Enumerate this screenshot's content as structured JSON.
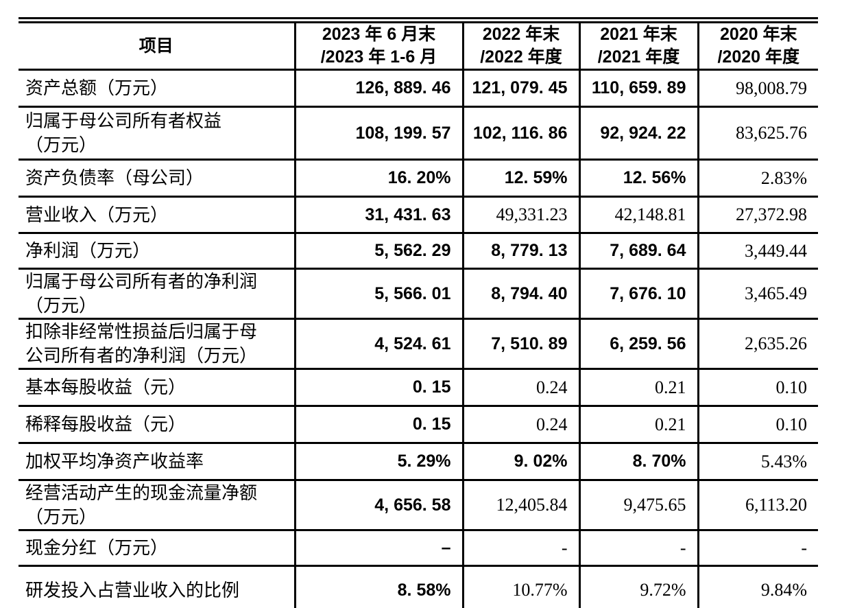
{
  "colors": {
    "text": "#000000",
    "background": "#ffffff",
    "border": "#000000"
  },
  "table": {
    "header": [
      "项目",
      "2023 年 6 月末\n/2023 年 1-6 月",
      "2022 年末\n/2022 年度",
      "2021 年末\n/2021 年度",
      "2020 年末\n/2020 年度"
    ],
    "rows": [
      {
        "label": "资产总额（万元）",
        "values": [
          "126, 889. 46",
          "121, 079. 45",
          "110, 659. 89",
          "98,008.79"
        ],
        "bold": [
          true,
          true,
          true,
          false
        ]
      },
      {
        "label": "归属于母公司所有者权益\n（万元）",
        "values": [
          "108, 199. 57",
          "102, 116. 86",
          "92, 924. 22",
          "83,625.76"
        ],
        "bold": [
          true,
          true,
          true,
          false
        ]
      },
      {
        "label": "资产负债率（母公司）",
        "values": [
          "16. 20%",
          "12. 59%",
          "12. 56%",
          "2.83%"
        ],
        "bold": [
          true,
          true,
          true,
          false
        ]
      },
      {
        "label": "营业收入（万元）",
        "values": [
          "31, 431. 63",
          "49,331.23",
          "42,148.81",
          "27,372.98"
        ],
        "bold": [
          true,
          false,
          false,
          false
        ]
      },
      {
        "label": "净利润（万元）",
        "values": [
          "5, 562. 29",
          "8, 779. 13",
          "7, 689. 64",
          "3,449.44"
        ],
        "bold": [
          true,
          true,
          true,
          false
        ]
      },
      {
        "label": "归属于母公司所有者的净利润\n（万元）",
        "values": [
          "5, 566. 01",
          "8, 794. 40",
          "7, 676. 10",
          "3,465.49"
        ],
        "bold": [
          true,
          true,
          true,
          false
        ]
      },
      {
        "label": "扣除非经常性损益后归属于母\n公司所有者的净利润（万元）",
        "values": [
          "4, 524. 61",
          "7, 510. 89",
          "6, 259. 56",
          "2,635.26"
        ],
        "bold": [
          true,
          true,
          true,
          false
        ]
      },
      {
        "label": "基本每股收益（元）",
        "values": [
          "0. 15",
          "0.24",
          "0.21",
          "0.10"
        ],
        "bold": [
          true,
          false,
          false,
          false
        ]
      },
      {
        "label": "稀释每股收益（元）",
        "values": [
          "0. 15",
          "0.24",
          "0.21",
          "0.10"
        ],
        "bold": [
          true,
          false,
          false,
          false
        ]
      },
      {
        "label": "加权平均净资产收益率",
        "values": [
          "5. 29%",
          "9. 02%",
          "8. 70%",
          "5.43%"
        ],
        "bold": [
          true,
          true,
          true,
          false
        ]
      },
      {
        "label": "经营活动产生的现金流量净额\n（万元）",
        "values": [
          "4, 656. 58",
          "12,405.84",
          "9,475.65",
          "6,113.20"
        ],
        "bold": [
          true,
          false,
          false,
          false
        ]
      },
      {
        "label": "现金分红（万元）",
        "values": [
          "–",
          "-",
          "-",
          "-"
        ],
        "bold": [
          true,
          false,
          false,
          false
        ]
      },
      {
        "label": "研发投入占营业收入的比例",
        "values": [
          "8. 58%",
          "10.77%",
          "9.72%",
          "9.84%"
        ],
        "bold": [
          true,
          false,
          false,
          false
        ]
      }
    ]
  }
}
